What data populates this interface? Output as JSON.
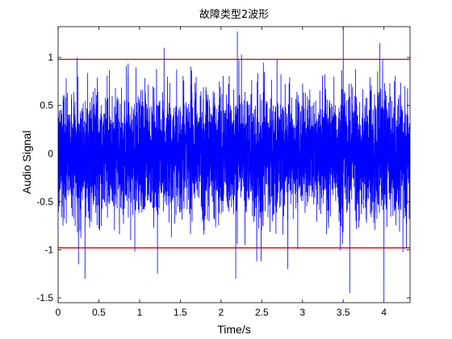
{
  "chart_data": {
    "type": "line",
    "title": "故障类型2波形",
    "xlabel": "Time/s",
    "ylabel": "Audio Signal",
    "xlim": [
      0,
      4.32
    ],
    "ylim": [
      -1.55,
      1.32
    ],
    "xticks": [
      0,
      0.5,
      1,
      1.5,
      2,
      2.5,
      3,
      3.5,
      4
    ],
    "xtick_labels": [
      "0",
      "0.5",
      "1",
      "1.5",
      "2",
      "2.5",
      "3",
      "3.5",
      "4"
    ],
    "yticks": [
      -1.5,
      -1,
      -0.5,
      0,
      0.5,
      1
    ],
    "ytick_labels": [
      "-1.5",
      "-1",
      "-0.5",
      "0",
      "0.5",
      "1"
    ],
    "grid": false,
    "series": [
      {
        "type": "noise",
        "color": "#0000ff",
        "duration": 4.32,
        "typical_amplitude": 0.5,
        "peaks": [
          {
            "x": 0.25,
            "y": -1.15
          },
          {
            "x": 0.33,
            "y": -1.3
          },
          {
            "x": 1.22,
            "y": -1.25
          },
          {
            "x": 1.3,
            "y": 1.1
          },
          {
            "x": 2.2,
            "y": 1.27
          },
          {
            "x": 2.18,
            "y": -1.3
          },
          {
            "x": 2.82,
            "y": -1.2
          },
          {
            "x": 3.5,
            "y": 1.32
          },
          {
            "x": 3.58,
            "y": -1.45
          },
          {
            "x": 3.95,
            "y": 1.15
          },
          {
            "x": 4.0,
            "y": -1.52
          }
        ]
      }
    ],
    "reference_lines": [
      {
        "y": 0.98,
        "color": "#cc0000"
      },
      {
        "y": -0.98,
        "color": "#cc0000"
      }
    ]
  }
}
